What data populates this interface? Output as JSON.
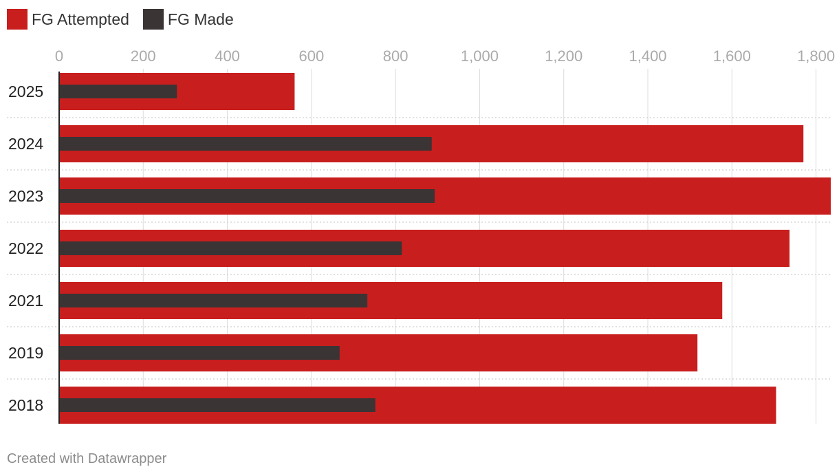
{
  "colors": {
    "attempted": "#c81e1e",
    "made": "#3a3435",
    "grid": "#dcdcdc",
    "tick": "#aaaaaa",
    "axis": "#222222",
    "label": "#222222"
  },
  "chart_data": {
    "type": "bar",
    "orientation": "horizontal",
    "categories": [
      "2025",
      "2024",
      "2023",
      "2022",
      "2021",
      "2019",
      "2018"
    ],
    "series": [
      {
        "name": "FG Attempted",
        "values": [
          560,
          1770,
          1835,
          1737,
          1577,
          1518,
          1705
        ]
      },
      {
        "name": "FG Made",
        "values": [
          280,
          886,
          893,
          815,
          733,
          667,
          752
        ]
      }
    ],
    "xlim": [
      0,
      1835
    ],
    "x_ticks": [
      0,
      200,
      400,
      600,
      800,
      1000,
      1200,
      1400,
      1600,
      1800
    ],
    "x_tick_labels": [
      "0",
      "200",
      "400",
      "600",
      "800",
      "1,000",
      "1,200",
      "1,400",
      "1,600",
      "1,800"
    ],
    "legend": "top-left",
    "grid": true
  },
  "footer": {
    "credit": "Created with Datawrapper"
  }
}
